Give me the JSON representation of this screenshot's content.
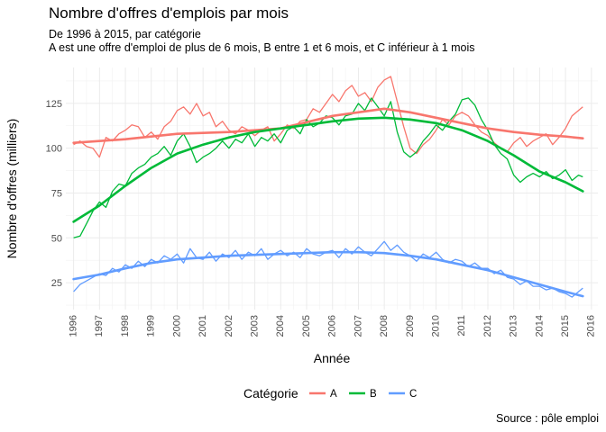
{
  "chart_data": {
    "type": "line",
    "title": "Nombre d'offres d'emplois par mois",
    "subtitle_lines": [
      "De 1996 à 2015, par catégorie",
      "A est une offre d'emploi de plus de 6 mois, B entre 1 et 6 mois, et C inférieur à 1 mois"
    ],
    "caption": "Source : pôle emploi",
    "xlabel": "Année",
    "ylabel": "Nombre d'offres (milliers)",
    "xlim": [
      1995.7,
      2016.25
    ],
    "ylim": [
      10,
      145
    ],
    "x_ticks": [
      "1996",
      "1997",
      "1998",
      "1999",
      "2000",
      "2001",
      "2002",
      "2003",
      "2004",
      "2005",
      "2006",
      "2007",
      "2008",
      "2009",
      "2010",
      "2011",
      "2012",
      "2013",
      "2014",
      "2015",
      "2016"
    ],
    "y_ticks": [
      25,
      50,
      75,
      100,
      125
    ],
    "grid": true,
    "legend": {
      "title": "Catégorie",
      "position": "bottom",
      "entries": [
        "A",
        "B",
        "C"
      ]
    },
    "series": [
      {
        "name": "A",
        "color": "#F8766D",
        "raw": [
          [
            1996.0,
            102
          ],
          [
            1996.25,
            104
          ],
          [
            1996.5,
            101
          ],
          [
            1996.75,
            100
          ],
          [
            1997.0,
            95
          ],
          [
            1997.25,
            106
          ],
          [
            1997.5,
            104
          ],
          [
            1997.75,
            108
          ],
          [
            1998.0,
            110
          ],
          [
            1998.25,
            113
          ],
          [
            1998.5,
            112
          ],
          [
            1998.75,
            106
          ],
          [
            1999.0,
            109
          ],
          [
            1999.25,
            105
          ],
          [
            1999.5,
            112
          ],
          [
            1999.75,
            115
          ],
          [
            2000.0,
            121
          ],
          [
            2000.25,
            123
          ],
          [
            2000.5,
            119
          ],
          [
            2000.75,
            125
          ],
          [
            2001.0,
            118
          ],
          [
            2001.25,
            120
          ],
          [
            2001.5,
            112
          ],
          [
            2001.75,
            115
          ],
          [
            2002.0,
            110
          ],
          [
            2002.25,
            108
          ],
          [
            2002.5,
            112
          ],
          [
            2002.75,
            110
          ],
          [
            2003.0,
            107
          ],
          [
            2003.25,
            110
          ],
          [
            2003.5,
            112
          ],
          [
            2003.75,
            104
          ],
          [
            2004.0,
            108
          ],
          [
            2004.25,
            113
          ],
          [
            2004.5,
            111
          ],
          [
            2004.75,
            115
          ],
          [
            2005.0,
            116
          ],
          [
            2005.25,
            122
          ],
          [
            2005.5,
            120
          ],
          [
            2005.75,
            125
          ],
          [
            2006.0,
            130
          ],
          [
            2006.25,
            126
          ],
          [
            2006.5,
            132
          ],
          [
            2006.75,
            135
          ],
          [
            2007.0,
            129
          ],
          [
            2007.25,
            131
          ],
          [
            2007.5,
            126
          ],
          [
            2007.75,
            134
          ],
          [
            2008.0,
            138
          ],
          [
            2008.25,
            140
          ],
          [
            2008.5,
            126
          ],
          [
            2008.75,
            112
          ],
          [
            2009.0,
            100
          ],
          [
            2009.25,
            97
          ],
          [
            2009.5,
            102
          ],
          [
            2009.75,
            105
          ],
          [
            2010.0,
            110
          ],
          [
            2010.25,
            116
          ],
          [
            2010.5,
            113
          ],
          [
            2010.75,
            118
          ],
          [
            2011.0,
            120
          ],
          [
            2011.25,
            118
          ],
          [
            2011.5,
            113
          ],
          [
            2011.75,
            109
          ],
          [
            2012.0,
            107
          ],
          [
            2012.25,
            103
          ],
          [
            2012.5,
            100
          ],
          [
            2012.75,
            98
          ],
          [
            2013.0,
            103
          ],
          [
            2013.25,
            106
          ],
          [
            2013.5,
            101
          ],
          [
            2013.75,
            104
          ],
          [
            2014.0,
            106
          ],
          [
            2014.25,
            108
          ],
          [
            2014.5,
            102
          ],
          [
            2014.75,
            106
          ],
          [
            2015.0,
            111
          ],
          [
            2015.25,
            118
          ],
          [
            2015.5,
            121
          ],
          [
            2015.67,
            123
          ]
        ],
        "smooth": [
          [
            1996.0,
            103
          ],
          [
            1998.0,
            105
          ],
          [
            2000.0,
            108
          ],
          [
            2002.0,
            109
          ],
          [
            2004.0,
            111
          ],
          [
            2006.0,
            118
          ],
          [
            2008.0,
            122
          ],
          [
            2009.0,
            120
          ],
          [
            2010.0,
            117
          ],
          [
            2011.0,
            114
          ],
          [
            2012.0,
            111
          ],
          [
            2013.0,
            109
          ],
          [
            2014.0,
            107.5
          ],
          [
            2015.0,
            106.5
          ],
          [
            2015.67,
            105.5
          ]
        ]
      },
      {
        "name": "B",
        "color": "#00BA38",
        "raw": [
          [
            1996.0,
            50
          ],
          [
            1996.25,
            51
          ],
          [
            1996.5,
            58
          ],
          [
            1996.75,
            65
          ],
          [
            1997.0,
            70
          ],
          [
            1997.25,
            67
          ],
          [
            1997.5,
            76
          ],
          [
            1997.75,
            80
          ],
          [
            1998.0,
            79
          ],
          [
            1998.25,
            86
          ],
          [
            1998.5,
            89
          ],
          [
            1998.75,
            91
          ],
          [
            1999.0,
            95
          ],
          [
            1999.25,
            97
          ],
          [
            1999.5,
            101
          ],
          [
            1999.75,
            96
          ],
          [
            2000.0,
            104
          ],
          [
            2000.25,
            108
          ],
          [
            2000.5,
            101
          ],
          [
            2000.75,
            92
          ],
          [
            2001.0,
            95
          ],
          [
            2001.25,
            97
          ],
          [
            2001.5,
            100
          ],
          [
            2001.75,
            104
          ],
          [
            2002.0,
            100
          ],
          [
            2002.25,
            105
          ],
          [
            2002.5,
            103
          ],
          [
            2002.75,
            108
          ],
          [
            2003.0,
            101
          ],
          [
            2003.25,
            106
          ],
          [
            2003.5,
            104
          ],
          [
            2003.75,
            108
          ],
          [
            2004.0,
            103
          ],
          [
            2004.25,
            110
          ],
          [
            2004.5,
            112
          ],
          [
            2004.75,
            108
          ],
          [
            2005.0,
            116
          ],
          [
            2005.25,
            112
          ],
          [
            2005.5,
            114
          ],
          [
            2005.75,
            118
          ],
          [
            2006.0,
            117
          ],
          [
            2006.25,
            113
          ],
          [
            2006.5,
            118
          ],
          [
            2006.75,
            119
          ],
          [
            2007.0,
            125
          ],
          [
            2007.25,
            121
          ],
          [
            2007.5,
            128
          ],
          [
            2007.75,
            123
          ],
          [
            2008.0,
            118
          ],
          [
            2008.25,
            126
          ],
          [
            2008.5,
            109
          ],
          [
            2008.75,
            98
          ],
          [
            2009.0,
            95
          ],
          [
            2009.25,
            98
          ],
          [
            2009.5,
            104
          ],
          [
            2009.75,
            108
          ],
          [
            2010.0,
            113
          ],
          [
            2010.25,
            110
          ],
          [
            2010.5,
            115
          ],
          [
            2010.75,
            119
          ],
          [
            2011.0,
            127
          ],
          [
            2011.25,
            128
          ],
          [
            2011.5,
            124
          ],
          [
            2011.75,
            116
          ],
          [
            2012.0,
            110
          ],
          [
            2012.25,
            102
          ],
          [
            2012.5,
            97
          ],
          [
            2012.75,
            94
          ],
          [
            2013.0,
            85
          ],
          [
            2013.25,
            81
          ],
          [
            2013.5,
            84
          ],
          [
            2013.75,
            86
          ],
          [
            2014.0,
            84
          ],
          [
            2014.25,
            87
          ],
          [
            2014.5,
            83
          ],
          [
            2014.75,
            85
          ],
          [
            2015.0,
            88
          ],
          [
            2015.25,
            82
          ],
          [
            2015.5,
            85
          ],
          [
            2015.67,
            84
          ]
        ],
        "smooth": [
          [
            1996.0,
            59
          ],
          [
            1997.0,
            68
          ],
          [
            1998.0,
            79
          ],
          [
            1999.0,
            89
          ],
          [
            2000.0,
            97
          ],
          [
            2001.0,
            102
          ],
          [
            2002.0,
            106
          ],
          [
            2003.0,
            109
          ],
          [
            2004.0,
            111
          ],
          [
            2005.0,
            113
          ],
          [
            2006.0,
            115
          ],
          [
            2007.0,
            116.5
          ],
          [
            2008.0,
            117
          ],
          [
            2009.0,
            116
          ],
          [
            2010.0,
            114
          ],
          [
            2011.0,
            110
          ],
          [
            2012.0,
            104
          ],
          [
            2013.0,
            96
          ],
          [
            2014.0,
            87
          ],
          [
            2015.0,
            81
          ],
          [
            2015.67,
            76
          ]
        ]
      },
      {
        "name": "C",
        "color": "#619CFF",
        "raw": [
          [
            1996.0,
            20
          ],
          [
            1996.25,
            24
          ],
          [
            1996.5,
            26
          ],
          [
            1996.75,
            28
          ],
          [
            1997.0,
            30
          ],
          [
            1997.25,
            29
          ],
          [
            1997.5,
            33
          ],
          [
            1997.75,
            31
          ],
          [
            1998.0,
            35
          ],
          [
            1998.25,
            33
          ],
          [
            1998.5,
            37
          ],
          [
            1998.75,
            34
          ],
          [
            1999.0,
            38
          ],
          [
            1999.25,
            36
          ],
          [
            1999.5,
            40
          ],
          [
            1999.75,
            38
          ],
          [
            2000.0,
            41
          ],
          [
            2000.25,
            36
          ],
          [
            2000.5,
            44
          ],
          [
            2000.75,
            39
          ],
          [
            2001.0,
            38
          ],
          [
            2001.25,
            42
          ],
          [
            2001.5,
            37
          ],
          [
            2001.75,
            41
          ],
          [
            2002.0,
            39
          ],
          [
            2002.25,
            43
          ],
          [
            2002.5,
            38
          ],
          [
            2002.75,
            42
          ],
          [
            2003.0,
            40
          ],
          [
            2003.25,
            44
          ],
          [
            2003.5,
            38
          ],
          [
            2003.75,
            41
          ],
          [
            2004.0,
            43
          ],
          [
            2004.25,
            40
          ],
          [
            2004.5,
            42
          ],
          [
            2004.75,
            39
          ],
          [
            2005.0,
            44
          ],
          [
            2005.25,
            41
          ],
          [
            2005.5,
            40
          ],
          [
            2005.75,
            42
          ],
          [
            2006.0,
            43
          ],
          [
            2006.25,
            39
          ],
          [
            2006.5,
            44
          ],
          [
            2006.75,
            41
          ],
          [
            2007.0,
            45
          ],
          [
            2007.25,
            42
          ],
          [
            2007.5,
            40
          ],
          [
            2007.75,
            44
          ],
          [
            2008.0,
            48
          ],
          [
            2008.25,
            43
          ],
          [
            2008.5,
            46
          ],
          [
            2008.75,
            42
          ],
          [
            2009.0,
            40
          ],
          [
            2009.25,
            37
          ],
          [
            2009.5,
            41
          ],
          [
            2009.75,
            39
          ],
          [
            2010.0,
            42
          ],
          [
            2010.25,
            38
          ],
          [
            2010.5,
            36
          ],
          [
            2010.75,
            38
          ],
          [
            2011.0,
            37
          ],
          [
            2011.25,
            34
          ],
          [
            2011.5,
            36
          ],
          [
            2011.75,
            33
          ],
          [
            2012.0,
            33
          ],
          [
            2012.25,
            30
          ],
          [
            2012.5,
            32
          ],
          [
            2012.75,
            28
          ],
          [
            2013.0,
            27
          ],
          [
            2013.25,
            24
          ],
          [
            2013.5,
            26
          ],
          [
            2013.75,
            23
          ],
          [
            2014.0,
            23
          ],
          [
            2014.25,
            21
          ],
          [
            2014.5,
            22
          ],
          [
            2014.75,
            20
          ],
          [
            2015.0,
            19
          ],
          [
            2015.25,
            17
          ],
          [
            2015.5,
            20
          ],
          [
            2015.67,
            22
          ]
        ],
        "smooth": [
          [
            1996.0,
            27
          ],
          [
            1997.0,
            29.5
          ],
          [
            1998.0,
            33
          ],
          [
            1999.0,
            36
          ],
          [
            2000.0,
            38
          ],
          [
            2001.0,
            39
          ],
          [
            2002.0,
            40
          ],
          [
            2003.0,
            40.5
          ],
          [
            2004.0,
            41
          ],
          [
            2005.0,
            41.5
          ],
          [
            2006.0,
            42
          ],
          [
            2007.0,
            42
          ],
          [
            2008.0,
            41.5
          ],
          [
            2009.0,
            40
          ],
          [
            2010.0,
            38
          ],
          [
            2011.0,
            35
          ],
          [
            2012.0,
            32
          ],
          [
            2013.0,
            28
          ],
          [
            2014.0,
            24
          ],
          [
            2015.0,
            20
          ],
          [
            2015.67,
            17.5
          ]
        ]
      }
    ]
  }
}
